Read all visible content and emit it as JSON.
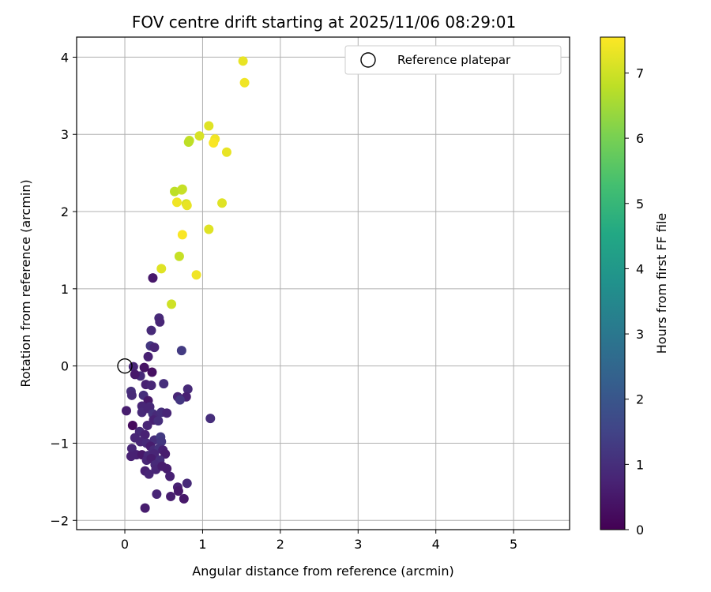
{
  "chart_data": {
    "type": "scatter",
    "title": "FOV centre drift starting at 2025/11/06 08:29:01",
    "xlabel": "Angular distance from reference (arcmin)",
    "ylabel": "Rotation from reference (arcmin)",
    "xlim": [
      -0.62,
      5.72
    ],
    "ylim": [
      -2.12,
      4.26
    ],
    "xticks": [
      0,
      1,
      2,
      3,
      4,
      5
    ],
    "xtick_labels": [
      "0",
      "1",
      "2",
      "3",
      "4",
      "5"
    ],
    "yticks": [
      -2,
      -1,
      0,
      1,
      2,
      3,
      4
    ],
    "ytick_labels": [
      "−2",
      "−1",
      "0",
      "1",
      "2",
      "3",
      "4"
    ],
    "grid": true,
    "legend": {
      "placement": "top-right",
      "entries": [
        "Reference platepar"
      ]
    },
    "reference_point": {
      "x": 0.0,
      "y": 0.0,
      "label": "Reference platepar"
    },
    "colorbar": {
      "label": "Hours from first FF file",
      "range": [
        0,
        7.55
      ],
      "ticks": [
        0,
        1,
        2,
        3,
        4,
        5,
        6,
        7
      ],
      "tick_labels": [
        "0",
        "1",
        "2",
        "3",
        "4",
        "5",
        "6",
        "7"
      ],
      "colormap": "viridis",
      "stops": [
        "#440154",
        "#482475",
        "#414487",
        "#355f8d",
        "#2a788e",
        "#21918c",
        "#22a884",
        "#44bf70",
        "#7ad151",
        "#bddf26",
        "#fde725"
      ]
    },
    "series": [
      {
        "name": "FOV centre drift",
        "points": [
          {
            "x": 1.52,
            "y": 3.95,
            "h": 7.3
          },
          {
            "x": 1.54,
            "y": 3.67,
            "h": 7.4
          },
          {
            "x": 1.08,
            "y": 3.11,
            "h": 7.2
          },
          {
            "x": 0.96,
            "y": 2.98,
            "h": 7.1
          },
          {
            "x": 1.16,
            "y": 2.94,
            "h": 7.4
          },
          {
            "x": 0.83,
            "y": 2.92,
            "h": 6.9
          },
          {
            "x": 0.82,
            "y": 2.9,
            "h": 6.8
          },
          {
            "x": 1.14,
            "y": 2.89,
            "h": 7.5
          },
          {
            "x": 1.31,
            "y": 2.77,
            "h": 7.3
          },
          {
            "x": 0.73,
            "y": 2.28,
            "h": 7.0
          },
          {
            "x": 0.64,
            "y": 2.26,
            "h": 6.8
          },
          {
            "x": 0.74,
            "y": 2.29,
            "h": 6.9
          },
          {
            "x": 0.67,
            "y": 2.12,
            "h": 7.4
          },
          {
            "x": 0.79,
            "y": 2.1,
            "h": 7.1
          },
          {
            "x": 1.25,
            "y": 2.11,
            "h": 7.2
          },
          {
            "x": 0.8,
            "y": 2.08,
            "h": 7.3
          },
          {
            "x": 1.08,
            "y": 1.77,
            "h": 7.2
          },
          {
            "x": 0.74,
            "y": 1.7,
            "h": 7.5
          },
          {
            "x": 0.7,
            "y": 1.42,
            "h": 6.9
          },
          {
            "x": 0.47,
            "y": 1.26,
            "h": 7.2
          },
          {
            "x": 0.92,
            "y": 1.18,
            "h": 7.4
          },
          {
            "x": 0.6,
            "y": 0.8,
            "h": 7.0
          },
          {
            "x": 0.36,
            "y": 1.14,
            "h": 0.5
          },
          {
            "x": 0.44,
            "y": 0.62,
            "h": 0.9
          },
          {
            "x": 0.45,
            "y": 0.57,
            "h": 0.8
          },
          {
            "x": 0.34,
            "y": 0.46,
            "h": 0.9
          },
          {
            "x": 0.33,
            "y": 0.26,
            "h": 1.2
          },
          {
            "x": 0.38,
            "y": 0.24,
            "h": 0.8
          },
          {
            "x": 0.73,
            "y": 0.2,
            "h": 1.3
          },
          {
            "x": 0.3,
            "y": 0.12,
            "h": 0.7
          },
          {
            "x": 0.11,
            "y": -0.01,
            "h": 0.8
          },
          {
            "x": 0.25,
            "y": -0.02,
            "h": 0.4
          },
          {
            "x": 0.35,
            "y": -0.08,
            "h": 0.3
          },
          {
            "x": 0.2,
            "y": -0.13,
            "h": 0.9
          },
          {
            "x": 0.13,
            "y": -0.11,
            "h": 0.5
          },
          {
            "x": 0.27,
            "y": -0.24,
            "h": 0.7
          },
          {
            "x": 0.34,
            "y": -0.25,
            "h": 0.8
          },
          {
            "x": 0.5,
            "y": -0.23,
            "h": 1.0
          },
          {
            "x": 0.81,
            "y": -0.3,
            "h": 0.9
          },
          {
            "x": 0.08,
            "y": -0.33,
            "h": 1.0
          },
          {
            "x": 0.09,
            "y": -0.38,
            "h": 0.9
          },
          {
            "x": 0.24,
            "y": -0.38,
            "h": 1.0
          },
          {
            "x": 0.68,
            "y": -0.4,
            "h": 0.8
          },
          {
            "x": 0.79,
            "y": -0.4,
            "h": 0.7
          },
          {
            "x": 0.3,
            "y": -0.45,
            "h": 0.5
          },
          {
            "x": 0.71,
            "y": -0.44,
            "h": 1.2
          },
          {
            "x": 0.22,
            "y": -0.52,
            "h": 0.8
          },
          {
            "x": 0.32,
            "y": -0.53,
            "h": 0.9
          },
          {
            "x": 0.02,
            "y": -0.58,
            "h": 0.6
          },
          {
            "x": 0.22,
            "y": -0.6,
            "h": 0.9
          },
          {
            "x": 0.3,
            "y": -0.55,
            "h": 0.8
          },
          {
            "x": 0.36,
            "y": -0.62,
            "h": 1.1
          },
          {
            "x": 0.41,
            "y": -0.64,
            "h": 0.9
          },
          {
            "x": 0.47,
            "y": -0.6,
            "h": 1.0
          },
          {
            "x": 0.54,
            "y": -0.61,
            "h": 0.8
          },
          {
            "x": 1.1,
            "y": -0.68,
            "h": 1.0
          },
          {
            "x": 0.37,
            "y": -0.7,
            "h": 0.7
          },
          {
            "x": 0.43,
            "y": -0.71,
            "h": 1.0
          },
          {
            "x": 0.1,
            "y": -0.77,
            "h": 0.2
          },
          {
            "x": 0.29,
            "y": -0.77,
            "h": 0.8
          },
          {
            "x": 0.19,
            "y": -0.85,
            "h": 0.9
          },
          {
            "x": 0.13,
            "y": -0.93,
            "h": 0.8
          },
          {
            "x": 0.26,
            "y": -0.89,
            "h": 0.7
          },
          {
            "x": 0.38,
            "y": -0.96,
            "h": 1.0
          },
          {
            "x": 0.46,
            "y": -0.92,
            "h": 1.3
          },
          {
            "x": 0.47,
            "y": -0.98,
            "h": 1.2
          },
          {
            "x": 0.2,
            "y": -0.98,
            "h": 0.8
          },
          {
            "x": 0.28,
            "y": -1.0,
            "h": 0.9
          },
          {
            "x": 0.33,
            "y": -1.04,
            "h": 0.6
          },
          {
            "x": 0.09,
            "y": -1.07,
            "h": 0.8
          },
          {
            "x": 0.37,
            "y": -1.09,
            "h": 0.9
          },
          {
            "x": 0.44,
            "y": -1.07,
            "h": 1.1
          },
          {
            "x": 0.49,
            "y": -1.09,
            "h": 0.7
          },
          {
            "x": 0.15,
            "y": -1.15,
            "h": 0.7
          },
          {
            "x": 0.22,
            "y": -1.15,
            "h": 0.5
          },
          {
            "x": 0.3,
            "y": -1.16,
            "h": 0.9
          },
          {
            "x": 0.38,
            "y": -1.14,
            "h": 0.8
          },
          {
            "x": 0.52,
            "y": -1.14,
            "h": 0.6
          },
          {
            "x": 0.08,
            "y": -1.17,
            "h": 0.7
          },
          {
            "x": 0.28,
            "y": -1.22,
            "h": 0.8
          },
          {
            "x": 0.34,
            "y": -1.2,
            "h": 0.6
          },
          {
            "x": 0.45,
            "y": -1.22,
            "h": 1.0
          },
          {
            "x": 0.39,
            "y": -1.28,
            "h": 0.9
          },
          {
            "x": 0.54,
            "y": -1.33,
            "h": 0.6
          },
          {
            "x": 0.26,
            "y": -1.36,
            "h": 0.7
          },
          {
            "x": 0.4,
            "y": -1.34,
            "h": 0.8
          },
          {
            "x": 0.48,
            "y": -1.3,
            "h": 0.6
          },
          {
            "x": 0.31,
            "y": -1.4,
            "h": 0.8
          },
          {
            "x": 0.58,
            "y": -1.43,
            "h": 0.7
          },
          {
            "x": 0.8,
            "y": -1.52,
            "h": 0.9
          },
          {
            "x": 0.68,
            "y": -1.57,
            "h": 0.7
          },
          {
            "x": 0.69,
            "y": -1.62,
            "h": 0.5
          },
          {
            "x": 0.41,
            "y": -1.66,
            "h": 0.8
          },
          {
            "x": 0.59,
            "y": -1.69,
            "h": 0.6
          },
          {
            "x": 0.76,
            "y": -1.72,
            "h": 0.5
          },
          {
            "x": 0.26,
            "y": -1.84,
            "h": 0.6
          }
        ]
      }
    ]
  }
}
